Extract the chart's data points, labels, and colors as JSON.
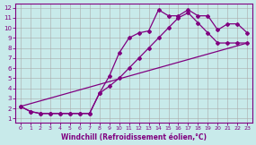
{
  "xlabel": "Windchill (Refroidissement éolien,°C)",
  "background_color": "#c8eaea",
  "line_color": "#800080",
  "grid_color": "#aaaaaa",
  "xlim": [
    -0.5,
    23.5
  ],
  "ylim": [
    0.6,
    12.4
  ],
  "xticks": [
    0,
    1,
    2,
    3,
    4,
    5,
    6,
    7,
    8,
    9,
    10,
    11,
    12,
    13,
    14,
    15,
    16,
    17,
    18,
    19,
    20,
    21,
    22,
    23
  ],
  "yticks": [
    1,
    2,
    3,
    4,
    5,
    6,
    7,
    8,
    9,
    10,
    11,
    12
  ],
  "line1_x": [
    0,
    1,
    2,
    3,
    4,
    5,
    6,
    7,
    8,
    9,
    10,
    11,
    12,
    13,
    14,
    15,
    16,
    17,
    18,
    19,
    20,
    21,
    22,
    23
  ],
  "line1_y": [
    2.2,
    1.7,
    1.5,
    1.5,
    1.5,
    1.5,
    1.5,
    1.5,
    3.5,
    5.2,
    7.5,
    9.0,
    9.5,
    9.7,
    11.8,
    11.2,
    11.2,
    11.8,
    11.2,
    11.2,
    9.8,
    10.4,
    10.4,
    9.5
  ],
  "line2_x": [
    0,
    1,
    2,
    3,
    4,
    5,
    6,
    7,
    8,
    9,
    10,
    11,
    12,
    13,
    14,
    15,
    16,
    17,
    18,
    19,
    20,
    21,
    22,
    23
  ],
  "line2_y": [
    2.2,
    1.7,
    1.5,
    1.5,
    1.5,
    1.5,
    1.5,
    1.5,
    3.5,
    4.2,
    5.0,
    6.0,
    7.0,
    8.0,
    9.0,
    10.0,
    11.0,
    11.5,
    10.5,
    9.5,
    8.5,
    8.5,
    8.5,
    8.5
  ],
  "line3_x": [
    0,
    23
  ],
  "line3_y": [
    2.2,
    8.5
  ],
  "marker": "D",
  "markersize": 2.0,
  "linewidth": 0.9,
  "tick_fontsize_x": 4.5,
  "tick_fontsize_y": 5.0,
  "xlabel_fontsize": 5.5
}
